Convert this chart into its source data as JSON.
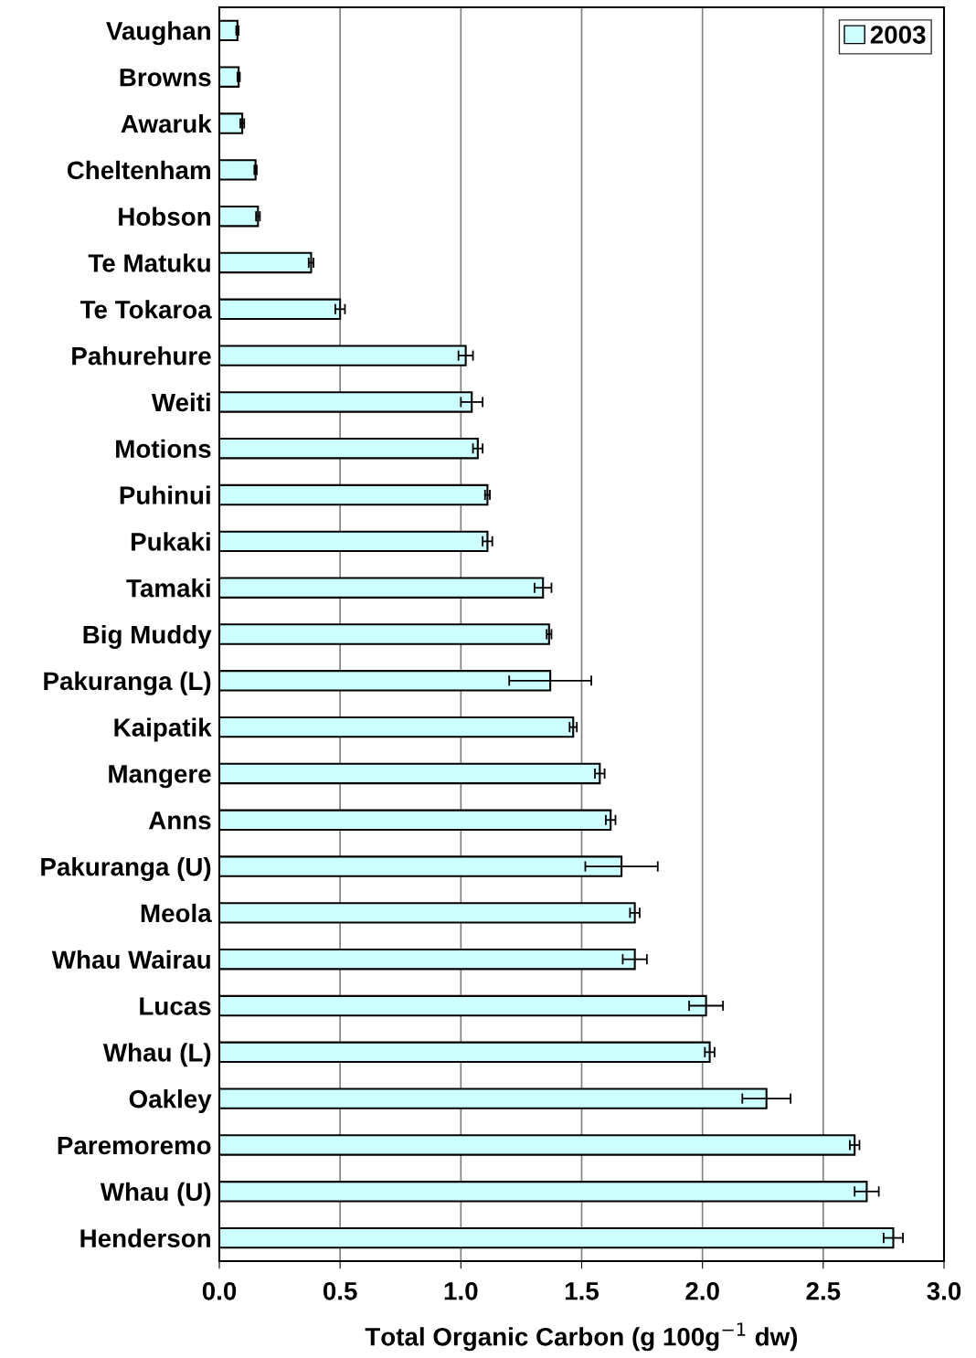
{
  "chart_data": {
    "type": "bar",
    "orientation": "horizontal",
    "xlabel": "Total Organic Carbon (g 100g$^{−1}$ dw)",
    "categories": [
      "Vaughan",
      "Browns",
      "Awaruk",
      "Cheltenham",
      "Hobson",
      "Te Matuku",
      "Te Tokaroa",
      "Pahurehure",
      "Weiti",
      "Motions",
      "Puhinui",
      "Pukaki",
      "Tamaki",
      "Big Muddy",
      "Pakuranga (L)",
      "Kaipatik",
      "Mangere",
      "Anns",
      "Pakuranga (U)",
      "Meola",
      "Whau Wairau",
      "Lucas",
      "Whau (L)",
      "Oakley",
      "Paremoremo",
      "Whau (U)",
      "Henderson"
    ],
    "series": [
      {
        "name": "2003",
        "color": "#ccffff",
        "values": [
          0.075,
          0.08,
          0.095,
          0.15,
          0.16,
          0.38,
          0.5,
          1.02,
          1.045,
          1.07,
          1.11,
          1.11,
          1.34,
          1.365,
          1.37,
          1.465,
          1.575,
          1.62,
          1.665,
          1.72,
          1.72,
          2.015,
          2.03,
          2.265,
          2.63,
          2.68,
          2.79
        ],
        "errors": [
          0.005,
          0.005,
          0.008,
          0.005,
          0.008,
          0.01,
          0.02,
          0.03,
          0.045,
          0.02,
          0.01,
          0.02,
          0.035,
          0.01,
          0.17,
          0.015,
          0.02,
          0.02,
          0.15,
          0.02,
          0.05,
          0.07,
          0.02,
          0.1,
          0.02,
          0.05,
          0.04
        ]
      }
    ],
    "xlim": [
      0,
      3
    ],
    "xticks": [
      {
        "value": 0,
        "label": "0.0"
      },
      {
        "value": 0.5,
        "label": "0.5"
      },
      {
        "value": 1,
        "label": "1.0"
      },
      {
        "value": 1.5,
        "label": "1.5"
      },
      {
        "value": 2,
        "label": "2.0"
      },
      {
        "value": 2.5,
        "label": "2.5"
      },
      {
        "value": 3,
        "label": "3.0"
      }
    ],
    "grid": "x",
    "legend": "top right"
  }
}
